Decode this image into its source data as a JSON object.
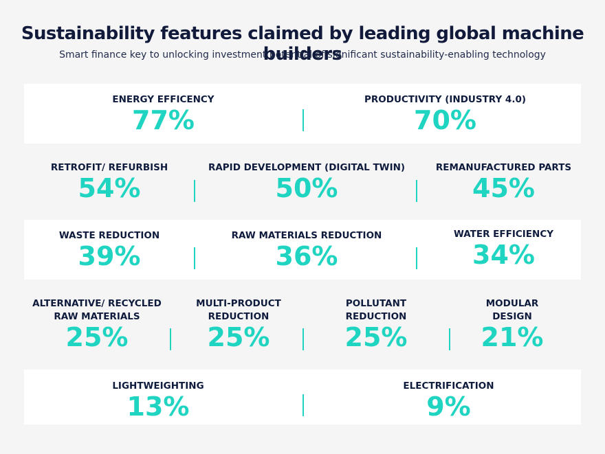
{
  "header": {
    "title": "Sustainability features claimed by leading global machine builders",
    "subtitle": "Smart finance key to unlocking investment potential of significant sustainability-enabling technology"
  },
  "rows": [
    [
      {
        "label": "ENERGY EFFICENCY",
        "value": "77%"
      },
      {
        "label": "PRODUCTIVITY (INDUSTRY 4.0)",
        "value": "70%"
      }
    ],
    [
      {
        "label": "RETROFIT/ REFURBISH",
        "value": "54%"
      },
      {
        "label": "RAPID DEVELOPMENT (DIGITAL TWIN)",
        "value": "50%"
      },
      {
        "label": "REMANUFACTURED PARTS",
        "value": "45%"
      }
    ],
    [
      {
        "label": "WASTE REDUCTION",
        "value": "39%"
      },
      {
        "label": "RAW MATERIALS REDUCTION",
        "value": "36%"
      },
      {
        "label": "WATER EFFICIENCY",
        "value": "34%"
      }
    ],
    [
      {
        "label_line1": "ALTERNATIVE/ RECYCLED",
        "label_line2": "RAW MATERIALS",
        "value": "25%"
      },
      {
        "label_line1": "MULTI-PRODUCT",
        "label_line2": "REDUCTION",
        "value": "25%"
      },
      {
        "label_line1": "POLLUTANT",
        "label_line2": "REDUCTION",
        "value": "25%"
      },
      {
        "label_line1": "MODULAR",
        "label_line2": "DESIGN",
        "value": "21%"
      }
    ],
    [
      {
        "label": "LIGHTWEIGHTING",
        "value": "13%"
      },
      {
        "label": "ELECTRIFICATION",
        "value": "9%"
      }
    ]
  ],
  "colors": {
    "accent": "#1fd4c0",
    "text": "#0f1b3d",
    "band": "#ffffff",
    "background": "#f5f5f5"
  }
}
